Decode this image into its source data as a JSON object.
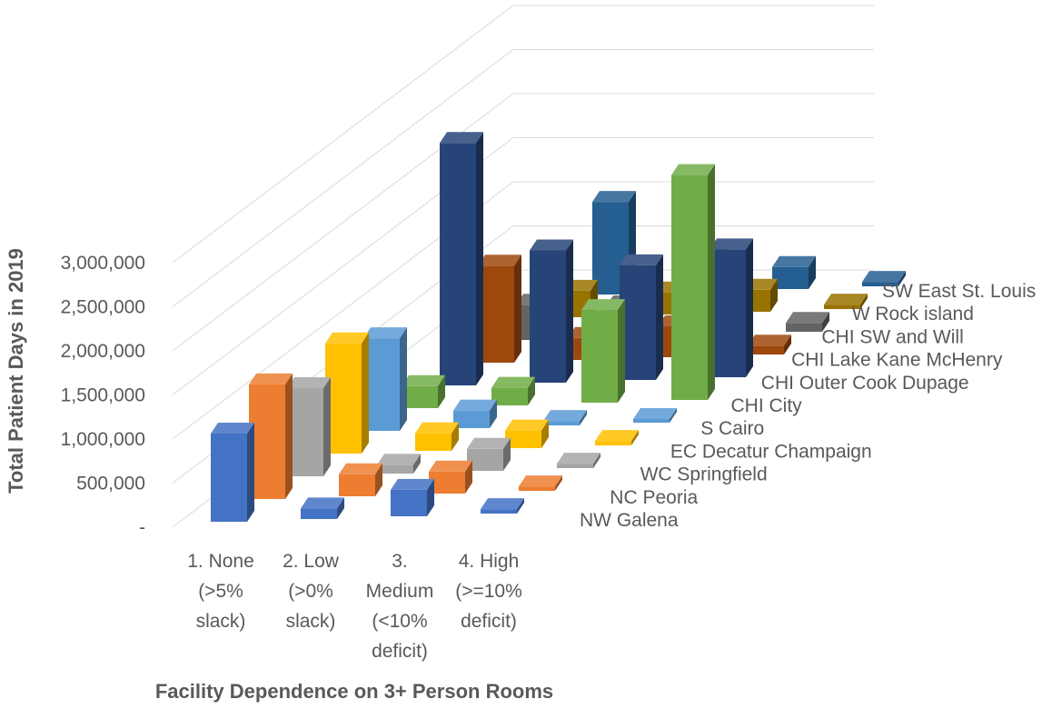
{
  "chart_data": {
    "type": "bar",
    "variant": "3d-column",
    "ylabel": "Total Patient Days in 2019",
    "xlabel": "Facility Dependence on 3+ Person Rooms",
    "ylim": [
      0,
      3000000
    ],
    "ytick_labels": [
      "-",
      "500,000",
      "1,000,000",
      "1,500,000",
      "2,000,000",
      "2,500,000",
      "3,000,000"
    ],
    "grid": true,
    "categories": [
      "1. None (>5% slack)",
      "2. Low (>0% slack)",
      "3. Medium (<10% deficit)",
      "4. High (>=10% deficit)"
    ],
    "category_lines": [
      [
        "1. None",
        "(>5%",
        "slack)"
      ],
      [
        "2. Low",
        "(>0%",
        "slack)"
      ],
      [
        "3.",
        "Medium",
        "(<10%",
        "deficit)"
      ],
      [
        "4. High",
        "(>=10%",
        "deficit)"
      ]
    ],
    "series": [
      {
        "name": "NW Galena",
        "color": "#4472C4",
        "values": [
          1000000,
          120000,
          300000,
          50000
        ]
      },
      {
        "name": "NC Peoria",
        "color": "#ED7D31",
        "values": [
          1300000,
          250000,
          250000,
          50000
        ]
      },
      {
        "name": "WC Springfield",
        "color": "#A5A5A5",
        "values": [
          1000000,
          100000,
          250000,
          50000
        ]
      },
      {
        "name": "EC Decatur Champaign",
        "color": "#FFC000",
        "values": [
          1250000,
          200000,
          200000,
          50000
        ]
      },
      {
        "name": "S Cairo",
        "color": "#5B9BD5",
        "values": [
          1050000,
          200000,
          50000,
          0
        ]
      },
      {
        "name": "CHI City",
        "color": "#70AD47",
        "values": [
          250000,
          200000,
          1050000,
          2550000
        ]
      },
      {
        "name": "CHI Outer Cook Dupage",
        "color": "#264478",
        "values": [
          2750000,
          1500000,
          1300000,
          1450000
        ]
      },
      {
        "name": "CHI Lake Kane McHenry",
        "color": "#9E480E",
        "values": [
          1100000,
          250000,
          350000,
          100000
        ]
      },
      {
        "name": "CHI SW and Will",
        "color": "#636363",
        "values": [
          400000,
          350000,
          250000,
          100000
        ]
      },
      {
        "name": "W Rock island",
        "color": "#997300",
        "values": [
          300000,
          250000,
          250000,
          50000
        ]
      },
      {
        "name": "SW East St. Louis",
        "color": "#255E91",
        "values": [
          1050000,
          400000,
          250000,
          50000
        ]
      }
    ]
  }
}
